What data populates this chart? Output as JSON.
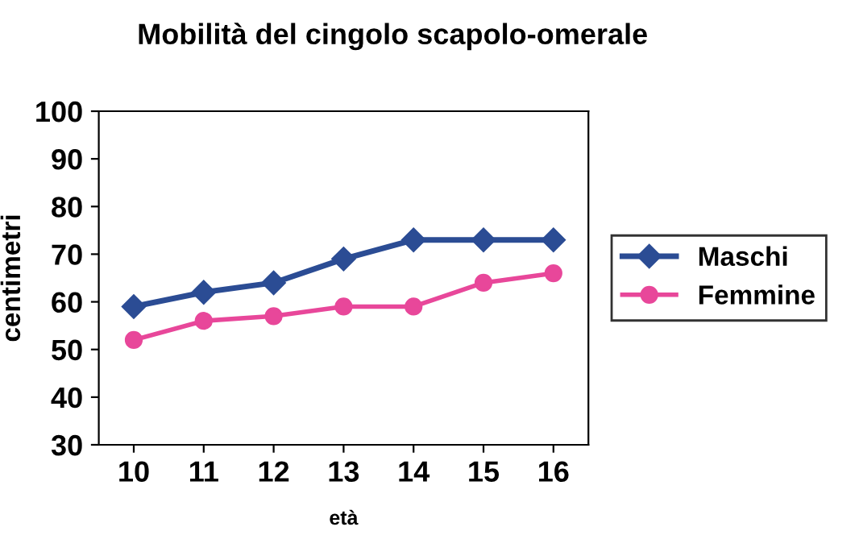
{
  "chart_data": {
    "type": "line",
    "title": "Mobilità del cingolo scapolo-omerale",
    "xlabel": "età",
    "ylabel": "centimetri",
    "categories": [
      "10",
      "11",
      "12",
      "13",
      "14",
      "15",
      "16"
    ],
    "series": [
      {
        "name": "Maschi",
        "color": "#2b4c94",
        "values": [
          59,
          62,
          64,
          69,
          73,
          73,
          73
        ],
        "marker": "diamond"
      },
      {
        "name": "Femmine",
        "color": "#e8479a",
        "values": [
          52,
          56,
          57,
          59,
          59,
          64,
          66
        ],
        "marker": "circle"
      }
    ],
    "ylim": [
      30,
      100
    ],
    "yticks": [
      30,
      40,
      50,
      60,
      70,
      80,
      90,
      100
    ],
    "grid": false,
    "legend": "right"
  }
}
